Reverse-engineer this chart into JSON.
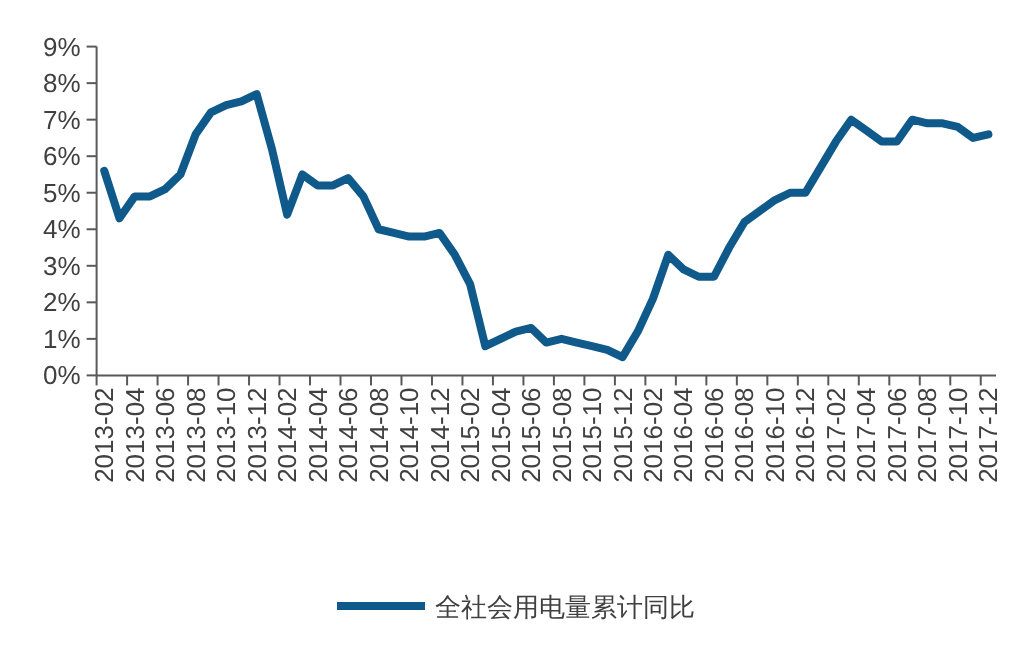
{
  "chart_data": {
    "type": "line",
    "categories": [
      "2013-02",
      null,
      "2013-04",
      null,
      "2013-06",
      null,
      "2013-08",
      null,
      "2013-10",
      null,
      "2013-12",
      null,
      "2014-02",
      null,
      "2014-04",
      null,
      "2014-06",
      null,
      "2014-08",
      null,
      "2014-10",
      null,
      "2014-12",
      null,
      "2015-02",
      null,
      "2015-04",
      null,
      "2015-06",
      null,
      "2015-08",
      null,
      "2015-10",
      null,
      "2015-12",
      null,
      "2016-02",
      null,
      "2016-04",
      null,
      "2016-06",
      null,
      "2016-08",
      null,
      "2016-10",
      null,
      "2016-12",
      null,
      "2017-02",
      null,
      "2017-04",
      null,
      "2017-06",
      null,
      "2017-08",
      null,
      "2017-10",
      null,
      "2017-12"
    ],
    "series": [
      {
        "name": "全社会用电量累计同比",
        "color": "#0f5a8a",
        "values": [
          5.6,
          4.3,
          4.9,
          4.9,
          5.1,
          5.5,
          6.6,
          7.2,
          7.4,
          7.5,
          7.7,
          6.2,
          4.4,
          5.5,
          5.2,
          5.2,
          5.4,
          4.9,
          4.0,
          3.9,
          3.8,
          3.8,
          3.9,
          3.3,
          2.5,
          0.8,
          1.0,
          1.2,
          1.3,
          0.9,
          1.0,
          0.9,
          0.8,
          0.7,
          0.5,
          1.2,
          2.1,
          3.3,
          2.9,
          2.7,
          2.7,
          3.5,
          4.2,
          4.5,
          4.8,
          5.0,
          5.0,
          5.7,
          6.4,
          7.0,
          6.7,
          6.4,
          6.4,
          7.0,
          6.9,
          6.9,
          6.8,
          6.5,
          6.6
        ]
      }
    ],
    "ylim": [
      0,
      9
    ],
    "yticks": [
      {
        "value": 0,
        "label": "0%"
      },
      {
        "value": 1,
        "label": "1%"
      },
      {
        "value": 2,
        "label": "2%"
      },
      {
        "value": 3,
        "label": "3%"
      },
      {
        "value": 4,
        "label": "4%"
      },
      {
        "value": 5,
        "label": "5%"
      },
      {
        "value": 6,
        "label": "6%"
      },
      {
        "value": 7,
        "label": "7%"
      },
      {
        "value": 8,
        "label": "8%"
      },
      {
        "value": 9,
        "label": "9%"
      }
    ],
    "grid": false,
    "legend": "bottom",
    "marker": "none",
    "line_style": "solid"
  }
}
